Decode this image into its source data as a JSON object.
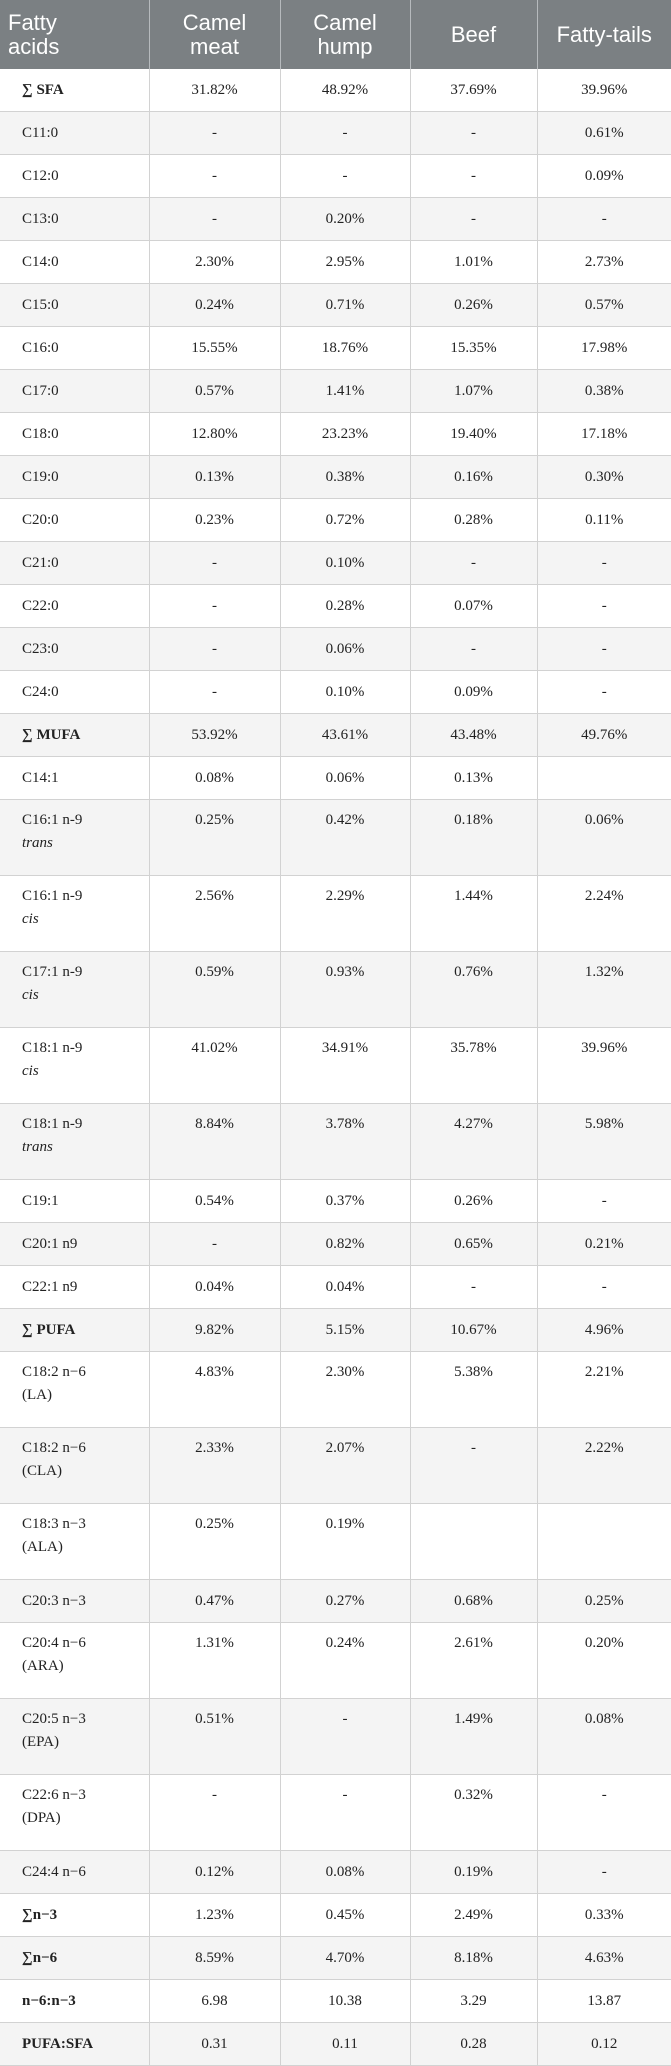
{
  "table": {
    "headers": [
      [
        "Fatty",
        "acids"
      ],
      [
        "Camel",
        "meat"
      ],
      [
        "Camel",
        "hump"
      ],
      [
        "Beef"
      ],
      [
        "Fatty-tails"
      ]
    ],
    "rows": [
      {
        "label": "∑ SFA",
        "sub": "",
        "bold": true,
        "values": [
          "31.82%",
          "48.92%",
          "37.69%",
          "39.96%"
        ]
      },
      {
        "label": "C11:0",
        "sub": "",
        "bold": false,
        "values": [
          "-",
          "-",
          "-",
          "0.61%"
        ]
      },
      {
        "label": "C12:0",
        "sub": "",
        "bold": false,
        "values": [
          "-",
          "-",
          "-",
          "0.09%"
        ]
      },
      {
        "label": "C13:0",
        "sub": "",
        "bold": false,
        "values": [
          "-",
          "0.20%",
          "-",
          "-"
        ]
      },
      {
        "label": "C14:0",
        "sub": "",
        "bold": false,
        "values": [
          "2.30%",
          "2.95%",
          "1.01%",
          "2.73%"
        ]
      },
      {
        "label": "C15:0",
        "sub": "",
        "bold": false,
        "values": [
          "0.24%",
          "0.71%",
          "0.26%",
          "0.57%"
        ]
      },
      {
        "label": "C16:0",
        "sub": "",
        "bold": false,
        "values": [
          "15.55%",
          "18.76%",
          "15.35%",
          "17.98%"
        ]
      },
      {
        "label": "C17:0",
        "sub": "",
        "bold": false,
        "values": [
          "0.57%",
          "1.41%",
          "1.07%",
          "0.38%"
        ]
      },
      {
        "label": "C18:0",
        "sub": "",
        "bold": false,
        "values": [
          "12.80%",
          "23.23%",
          "19.40%",
          "17.18%"
        ]
      },
      {
        "label": "C19:0",
        "sub": "",
        "bold": false,
        "values": [
          "0.13%",
          "0.38%",
          "0.16%",
          "0.30%"
        ]
      },
      {
        "label": "C20:0",
        "sub": "",
        "bold": false,
        "values": [
          "0.23%",
          "0.72%",
          "0.28%",
          "0.11%"
        ]
      },
      {
        "label": "C21:0",
        "sub": "",
        "bold": false,
        "values": [
          "-",
          "0.10%",
          "-",
          "-"
        ]
      },
      {
        "label": "C22:0",
        "sub": "",
        "bold": false,
        "values": [
          "-",
          "0.28%",
          "0.07%",
          "-"
        ]
      },
      {
        "label": "C23:0",
        "sub": "",
        "bold": false,
        "values": [
          "-",
          "0.06%",
          "-",
          "-"
        ]
      },
      {
        "label": "C24:0",
        "sub": "",
        "bold": false,
        "values": [
          "-",
          "0.10%",
          "0.09%",
          "-"
        ]
      },
      {
        "label": "∑ MUFA",
        "sub": "",
        "bold": true,
        "values": [
          "53.92%",
          "43.61%",
          "43.48%",
          "49.76%"
        ]
      },
      {
        "label": "C14:1",
        "sub": "",
        "bold": false,
        "values": [
          "0.08%",
          "0.06%",
          "0.13%",
          ""
        ]
      },
      {
        "label": "C16:1 n-9",
        "sub": "trans",
        "bold": false,
        "values": [
          "0.25%",
          "0.42%",
          "0.18%",
          "0.06%"
        ]
      },
      {
        "label": "C16:1 n-9",
        "sub": "cis",
        "bold": false,
        "values": [
          "2.56%",
          "2.29%",
          "1.44%",
          "2.24%"
        ]
      },
      {
        "label": "C17:1 n-9",
        "sub": "cis",
        "bold": false,
        "values": [
          "0.59%",
          "0.93%",
          "0.76%",
          "1.32%"
        ]
      },
      {
        "label": "C18:1 n-9",
        "sub": "cis",
        "bold": false,
        "values": [
          "41.02%",
          "34.91%",
          "35.78%",
          "39.96%"
        ]
      },
      {
        "label": "C18:1 n-9",
        "sub": "trans",
        "bold": false,
        "values": [
          "8.84%",
          "3.78%",
          "4.27%",
          "5.98%"
        ]
      },
      {
        "label": "C19:1",
        "sub": "",
        "bold": false,
        "values": [
          "0.54%",
          "0.37%",
          "0.26%",
          "-"
        ]
      },
      {
        "label": "C20:1 n9",
        "sub": "",
        "bold": false,
        "values": [
          "-",
          "0.82%",
          "0.65%",
          "0.21%"
        ]
      },
      {
        "label": "C22:1 n9",
        "sub": "",
        "bold": false,
        "values": [
          "0.04%",
          "0.04%",
          "-",
          "-"
        ]
      },
      {
        "label": "∑ PUFA",
        "sub": "",
        "bold": true,
        "values": [
          "9.82%",
          "5.15%",
          "10.67%",
          "4.96%"
        ]
      },
      {
        "label": "C18:2 n−6",
        "sub2": "(LA)",
        "sub": "",
        "bold": false,
        "values": [
          "4.83%",
          "2.30%",
          "5.38%",
          "2.21%"
        ]
      },
      {
        "label": "C18:2 n−6",
        "sub2": "(CLA)",
        "sub": "",
        "bold": false,
        "values": [
          "2.33%",
          "2.07%",
          "-",
          "2.22%"
        ]
      },
      {
        "label": "C18:3 n−3",
        "sub2": "(ALA)",
        "sub": "",
        "bold": false,
        "values": [
          "0.25%",
          "0.19%",
          "",
          ""
        ]
      },
      {
        "label": "C20:3 n−3",
        "sub": "",
        "bold": false,
        "values": [
          "0.47%",
          "0.27%",
          "0.68%",
          "0.25%"
        ]
      },
      {
        "label": "C20:4 n−6",
        "sub2": "(ARA)",
        "sub": "",
        "bold": false,
        "values": [
          "1.31%",
          "0.24%",
          "2.61%",
          "0.20%"
        ]
      },
      {
        "label": "C20:5 n−3",
        "sub2": "(EPA)",
        "sub": "",
        "bold": false,
        "values": [
          "0.51%",
          "-",
          "1.49%",
          "0.08%"
        ]
      },
      {
        "label": "C22:6 n−3",
        "sub2": "(DPA)",
        "sub": "",
        "bold": false,
        "values": [
          "-",
          "-",
          "0.32%",
          "-"
        ]
      },
      {
        "label": "C24:4 n−6",
        "sub": "",
        "bold": false,
        "values": [
          "0.12%",
          "0.08%",
          "0.19%",
          "-"
        ]
      },
      {
        "label": "∑n−3",
        "sub": "",
        "bold": true,
        "values": [
          "1.23%",
          "0.45%",
          "2.49%",
          "0.33%"
        ]
      },
      {
        "label": "∑n−6",
        "sub": "",
        "bold": true,
        "values": [
          "8.59%",
          "4.70%",
          "8.18%",
          "4.63%"
        ]
      },
      {
        "label": "n−6:n−3",
        "sub": "",
        "bold": true,
        "values": [
          "6.98",
          "10.38",
          "3.29",
          "13.87"
        ]
      },
      {
        "label": "PUFA:SFA",
        "sub": "",
        "bold": true,
        "values": [
          "0.31",
          "0.11",
          "0.28",
          "0.12"
        ]
      }
    ]
  }
}
